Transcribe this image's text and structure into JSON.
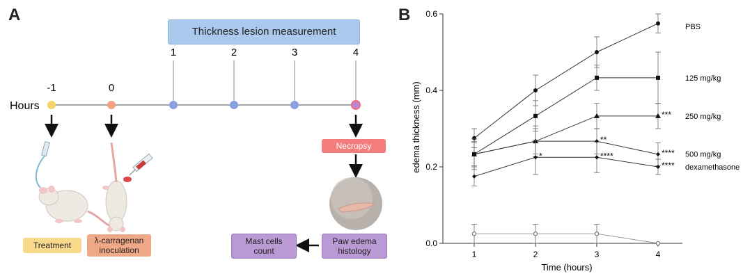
{
  "panel_a": {
    "letter": "A",
    "measurement_label": "Thickness lesion measurement",
    "hours_label": "Hours",
    "timepoints": [
      "-1",
      "0",
      "1",
      "2",
      "3",
      "4"
    ],
    "treatment_label": "Treatment",
    "inoculation_label": "λ-carragenan\ninoculation",
    "necropsy_label": "Necropsy",
    "histology_label": "Paw edema\nhistology",
    "mast_cells_label": "Mast cells\ncount",
    "colors": {
      "measurement_box": "#aac9ec",
      "treatment": "#f9d98a",
      "inoculation": "#f0a987",
      "necropsy": "#f47c7c",
      "purple": "#b99ad4",
      "dot_yellow": "#f6d26c",
      "dot_orange": "#f0a27e",
      "dot_blue": "#8b9ede"
    }
  },
  "panel_b": {
    "letter": "B"
  },
  "chart_data": {
    "type": "line",
    "ylabel": "edema thickness (mm)",
    "xlabel": "Time (hours)",
    "x": [
      1,
      2,
      3,
      4
    ],
    "xticks": [
      "1",
      "2",
      "3",
      "4"
    ],
    "yticks": [
      "0.0",
      "0.2",
      "0.4",
      "0.6"
    ],
    "ylim": [
      0,
      0.6
    ],
    "series": [
      {
        "name": "PBS",
        "marker": "circle",
        "values": [
          0.275,
          0.4,
          0.5,
          0.575
        ],
        "errors": [
          0.025,
          0.04,
          0.04,
          0.025
        ],
        "stars": [
          "",
          "",
          "",
          ""
        ]
      },
      {
        "name": "125 mg/kg",
        "marker": "square",
        "values": [
          0.233,
          0.333,
          0.433,
          0.433
        ],
        "errors": [
          0.04,
          0.04,
          0.033,
          0.067
        ],
        "stars": [
          "",
          "",
          "",
          ""
        ]
      },
      {
        "name": "250 mg/kg",
        "marker": "triangle",
        "values": [
          0.233,
          0.267,
          0.333,
          0.333
        ],
        "errors": [
          0.033,
          0.04,
          0.033,
          0.033
        ],
        "stars": [
          "",
          "",
          "",
          "***"
        ]
      },
      {
        "name": "500 mg/kg",
        "marker": "diamond",
        "values": [
          0.233,
          0.267,
          0.267,
          0.233
        ],
        "errors": [
          0.03,
          0.033,
          0.033,
          0.03
        ],
        "stars": [
          "",
          "",
          "**",
          "****"
        ]
      },
      {
        "name": "dexamethasone",
        "marker": "diamond",
        "values": [
          0.175,
          0.225,
          0.225,
          0.2
        ],
        "errors": [
          0.025,
          0.045,
          0.04,
          0.02
        ],
        "stars": [
          "",
          "*",
          "****",
          "****"
        ]
      },
      {
        "name": "",
        "marker": "open-circle",
        "values": [
          0.025,
          0.025,
          0.025,
          0.0
        ],
        "errors": [
          0.025,
          0.025,
          0.025,
          0.0
        ],
        "stars": [
          "",
          "",
          "",
          ""
        ]
      }
    ]
  }
}
